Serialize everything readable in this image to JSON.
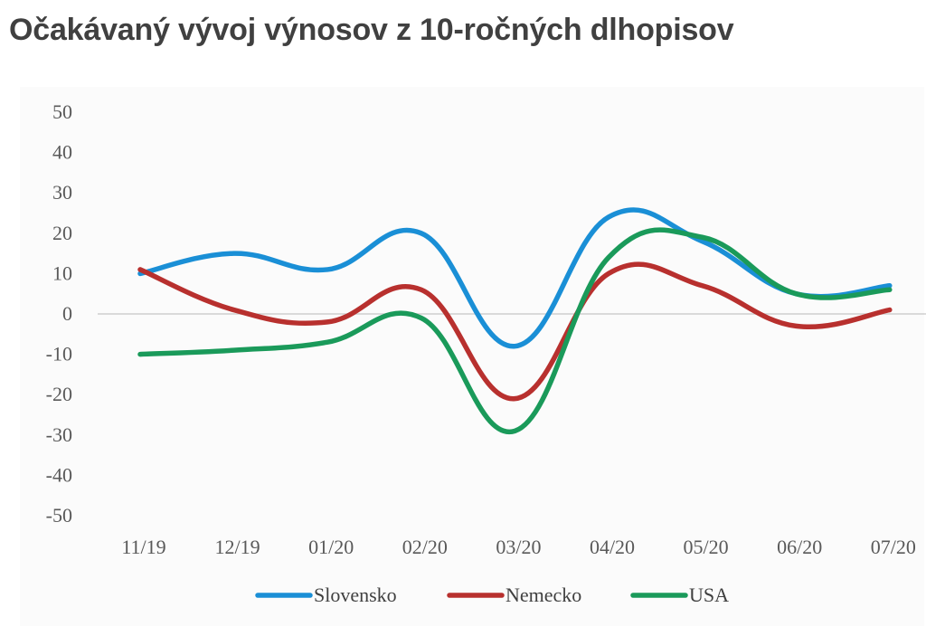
{
  "title": "Očakávaný vývoj výnosov z 10-ročných dlhopisov",
  "chart_data": {
    "type": "line",
    "title": "Očakávaný vývoj výnosov z 10-ročných dlhopisov",
    "xlabel": "",
    "ylabel": "",
    "ylim": [
      -50,
      50
    ],
    "yticks": [
      "50",
      "40",
      "30",
      "20",
      "10",
      "0",
      "-10",
      "-20",
      "-30",
      "-40",
      "-50"
    ],
    "categories": [
      "11/19",
      "12/19",
      "01/20",
      "02/20",
      "03/20",
      "04/20",
      "05/20",
      "06/20",
      "07/20"
    ],
    "series": [
      {
        "name": "Slovensko",
        "color": "#1a8fd6",
        "values": [
          10,
          15,
          11,
          20,
          -8,
          24,
          18,
          5,
          7
        ]
      },
      {
        "name": "Nemecko",
        "color": "#b8302e",
        "values": [
          11,
          1,
          -2,
          6,
          -21,
          10,
          7,
          -3,
          1
        ]
      },
      {
        "name": "USA",
        "color": "#1a9a5a",
        "values": [
          -10,
          -9,
          -7,
          -1,
          -29,
          14,
          19,
          5,
          6
        ]
      }
    ],
    "legend_position": "bottom"
  }
}
